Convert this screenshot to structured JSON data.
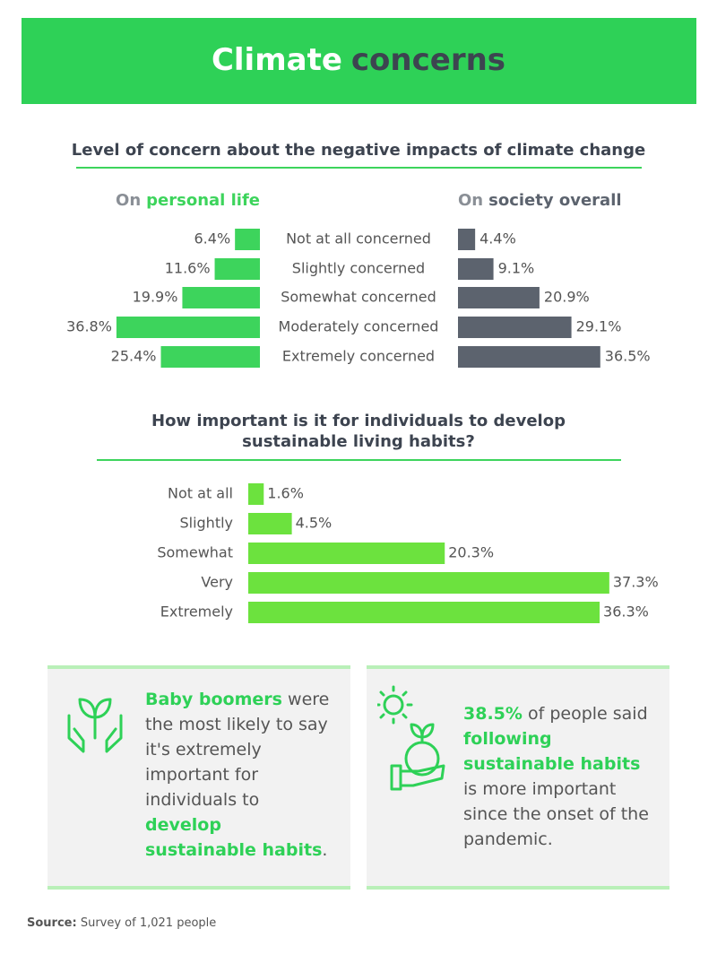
{
  "header": {
    "title": [
      "Climate",
      "concerns"
    ]
  },
  "chart_data": [
    {
      "type": "butterfly-bar",
      "title": "Level of concern about the negative impacts of climate change",
      "categories": [
        "Not at all concerned",
        "Slightly concerned",
        "Somewhat concerned",
        "Moderately concerned",
        "Extremely concerned"
      ],
      "series": [
        {
          "name": "On personal life",
          "color": "#3dd45c",
          "values": [
            6.4,
            11.6,
            19.9,
            36.8,
            25.4
          ],
          "value_labels": [
            "6.4%",
            "11.6%",
            "19.9%",
            "36.8%",
            "25.4%"
          ]
        },
        {
          "name": "On society overall",
          "color": "#5c636e",
          "values": [
            4.4,
            9.1,
            20.9,
            29.1,
            36.5
          ],
          "value_labels": [
            "4.4%",
            "9.1%",
            "20.9%",
            "29.1%",
            "36.5%"
          ]
        }
      ],
      "xlim": [
        0,
        40
      ]
    },
    {
      "type": "hbar",
      "title": "How important is it for individuals to develop sustainable living habits?",
      "categories": [
        "Not at all",
        "Slightly",
        "Somewhat",
        "Very",
        "Extremely"
      ],
      "values": [
        1.6,
        4.5,
        20.3,
        37.3,
        36.3
      ],
      "value_labels": [
        "1.6%",
        "4.5%",
        "20.3%",
        "37.3%",
        "36.3%"
      ],
      "color": "#6ce23e",
      "xlim": [
        0,
        40
      ]
    }
  ],
  "callouts": [
    {
      "segments": [
        {
          "text": "Baby boomers",
          "em": true
        },
        {
          "text": " were the most likely to say it's extremely important for individuals to "
        },
        {
          "text": "develop sustainable habits",
          "em": true
        },
        {
          "text": "."
        }
      ]
    },
    {
      "segments": [
        {
          "text": "38.5%",
          "em": true
        },
        {
          "text": " of people said "
        },
        {
          "text": "following sustainable habits",
          "em": true
        },
        {
          "text": " is more important since the onset of the pandemic."
        }
      ]
    }
  ],
  "source": {
    "label": "Source:",
    "text": "Survey of 1,021 people"
  }
}
